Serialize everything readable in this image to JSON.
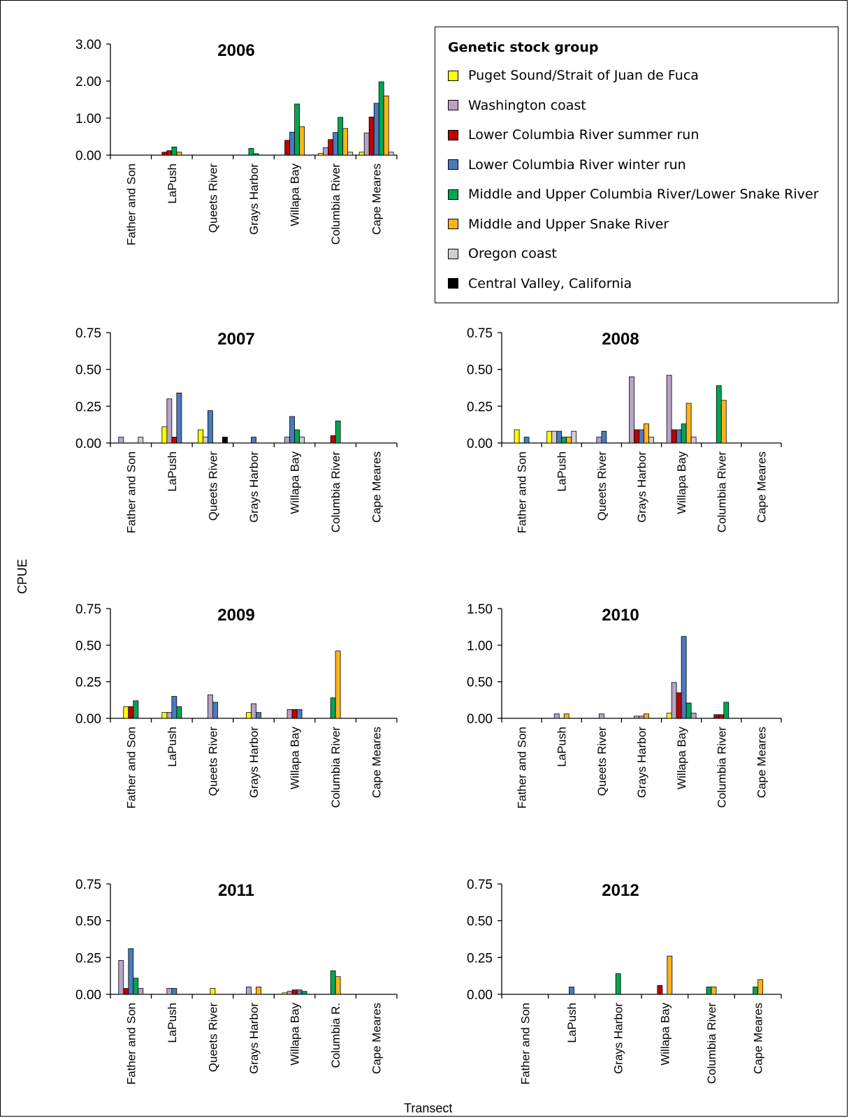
{
  "colors": {
    "puget": "#ffff00",
    "washington": "#b7a3c6",
    "lcr_summer": "#c00000",
    "lcr_winter": "#4a7bbd",
    "mucr": "#00a651",
    "snake": "#ffb31a",
    "oregon": "#cfcfcf",
    "central_valley": "#000000"
  },
  "legend": {
    "title": "Genetic stock group",
    "items": [
      {
        "label": "Puget Sound/Strait of Juan de Fuca",
        "color": "#ffff00"
      },
      {
        "label": "Washington coast",
        "color": "#b7a3c6"
      },
      {
        "label": "Lower Columbia River summer run",
        "color": "#c00000"
      },
      {
        "label": "Lower Columbia River winter run",
        "color": "#4a7bbd"
      },
      {
        "label": "Middle and Upper Columbia River/Lower Snake River",
        "color": "#00a651"
      },
      {
        "label": "Middle and Upper Snake River",
        "color": "#ffb31a"
      },
      {
        "label": "Oregon coast",
        "color": "#cfcfcf"
      },
      {
        "label": "Central Valley, California",
        "color": "#000000"
      }
    ]
  },
  "axes": {
    "ylabel": "CPUE",
    "xlabel": "Transect"
  },
  "chart_data": [
    {
      "type": "bar",
      "title": "2006",
      "categories": [
        "Father and Son",
        "LaPush",
        "Queets River",
        "Grays Harbor",
        "Willapa Bay",
        "Columbia River",
        "Cape Meares"
      ],
      "ylim": [
        0,
        3
      ],
      "yticks": [
        "0.00",
        "1.00",
        "2.00",
        "3.00"
      ],
      "groups": [
        [],
        [
          [
            "lcr_summer",
            0.08
          ],
          [
            "lcr_summer",
            0.12
          ],
          [
            "mucr",
            0.22
          ],
          [
            "snake",
            0.08
          ]
        ],
        [],
        [
          [
            "mucr",
            0.18
          ],
          [
            "mucr",
            0.04
          ]
        ],
        [
          [
            "lcr_summer",
            0.4
          ],
          [
            "lcr_winter",
            0.62
          ],
          [
            "mucr",
            1.38
          ],
          [
            "snake",
            0.77
          ]
        ],
        [
          [
            "puget",
            0.05
          ],
          [
            "washington",
            0.2
          ],
          [
            "lcr_summer",
            0.42
          ],
          [
            "lcr_winter",
            0.61
          ],
          [
            "mucr",
            1.02
          ],
          [
            "snake",
            0.72
          ],
          [
            "oregon",
            0.08
          ]
        ],
        [
          [
            "puget",
            0.08
          ],
          [
            "washington",
            0.6
          ],
          [
            "lcr_summer",
            1.03
          ],
          [
            "lcr_winter",
            1.4
          ],
          [
            "mucr",
            1.98
          ],
          [
            "snake",
            1.6
          ],
          [
            "oregon",
            0.08
          ]
        ]
      ]
    },
    {
      "type": "bar",
      "title": "2007",
      "categories": [
        "Father and Son",
        "LaPush",
        "Queets River",
        "Grays Harbor",
        "Willapa Bay",
        "Columbia River",
        "Cape Meares"
      ],
      "ylim": [
        0,
        0.75
      ],
      "yticks": [
        "0.00",
        "0.25",
        "0.50",
        "0.75"
      ],
      "groups": [
        [
          [
            "washington",
            0.04
          ],
          [
            null,
            0
          ],
          [
            null,
            0
          ],
          [
            null,
            0
          ],
          [
            "oregon",
            0.04
          ]
        ],
        [
          [
            "puget",
            0.11
          ],
          [
            "washington",
            0.3
          ],
          [
            "lcr_summer",
            0.04
          ],
          [
            "lcr_winter",
            0.34
          ]
        ],
        [
          [
            "puget",
            0.09
          ],
          [
            "oregon",
            0.04
          ],
          [
            "lcr_winter",
            0.22
          ],
          [
            null,
            0
          ],
          [
            null,
            0
          ],
          [
            "central_valley",
            0.04
          ]
        ],
        [
          [
            "lcr_winter",
            0.04
          ]
        ],
        [
          [
            "washington",
            0.04
          ],
          [
            "lcr_winter",
            0.18
          ],
          [
            "mucr",
            0.09
          ],
          [
            "oregon",
            0.04
          ]
        ],
        [
          [
            "lcr_summer",
            0.05
          ],
          [
            "mucr",
            0.15
          ]
        ],
        []
      ]
    },
    {
      "type": "bar",
      "title": "2008",
      "categories": [
        "Father and Son",
        "LaPush",
        "Queets River",
        "Grays Harbor",
        "Willapa Bay",
        "Columbia River",
        "Cape Meares"
      ],
      "ylim": [
        0,
        0.75
      ],
      "yticks": [
        "0.00",
        "0.25",
        "0.50",
        "0.75"
      ],
      "groups": [
        [
          [
            "puget",
            0.09
          ],
          [
            null,
            0
          ],
          [
            "lcr_winter",
            0.04
          ]
        ],
        [
          [
            "puget",
            0.08
          ],
          [
            "oregon",
            0.08
          ],
          [
            "lcr_winter",
            0.08
          ],
          [
            "mucr",
            0.04
          ],
          [
            "snake",
            0.04
          ],
          [
            "oregon",
            0.08
          ]
        ],
        [
          [
            "washington",
            0.04
          ],
          [
            "lcr_winter",
            0.08
          ]
        ],
        [
          [
            "washington",
            0.45
          ],
          [
            "lcr_summer",
            0.09
          ],
          [
            "lcr_winter",
            0.09
          ],
          [
            "snake",
            0.13
          ],
          [
            "oregon",
            0.04
          ]
        ],
        [
          [
            "washington",
            0.46
          ],
          [
            "lcr_summer",
            0.09
          ],
          [
            "lcr_winter",
            0.09
          ],
          [
            "mucr",
            0.13
          ],
          [
            "snake",
            0.27
          ],
          [
            "oregon",
            0.04
          ]
        ],
        [
          [
            "mucr",
            0.39
          ],
          [
            "snake",
            0.29
          ]
        ],
        []
      ]
    },
    {
      "type": "bar",
      "title": "2009",
      "categories": [
        "Father and Son",
        "LaPush",
        "Queets River",
        "Grays Harbor",
        "Willapa Bay",
        "Columbia River",
        "Cape Meares"
      ],
      "ylim": [
        0,
        0.75
      ],
      "yticks": [
        "0.00",
        "0.25",
        "0.50",
        "0.75"
      ],
      "groups": [
        [
          [
            "puget",
            0.08
          ],
          [
            "lcr_summer",
            0.08
          ],
          [
            "mucr",
            0.12
          ]
        ],
        [
          [
            "puget",
            0.04
          ],
          [
            "washington",
            0.04
          ],
          [
            "lcr_winter",
            0.15
          ],
          [
            "mucr",
            0.08
          ]
        ],
        [
          [
            "washington",
            0.16
          ],
          [
            "lcr_winter",
            0.11
          ]
        ],
        [
          [
            "puget",
            0.04
          ],
          [
            "washington",
            0.1
          ],
          [
            "lcr_winter",
            0.04
          ]
        ],
        [
          [
            "washington",
            0.06
          ],
          [
            "lcr_summer",
            0.06
          ],
          [
            "lcr_winter",
            0.06
          ]
        ],
        [
          [
            "mucr",
            0.14
          ],
          [
            "snake",
            0.46
          ]
        ],
        []
      ]
    },
    {
      "type": "bar",
      "title": "2010",
      "categories": [
        "Father and Son",
        "LaPush",
        "Queets River",
        "Grays Harbor",
        "Willapa Bay",
        "Columbia River",
        "Cape Meares"
      ],
      "ylim": [
        0,
        1.5
      ],
      "yticks": [
        "0.00",
        "0.50",
        "1.00",
        "1.50"
      ],
      "groups": [
        [],
        [
          [
            "washington",
            0.06
          ],
          [
            null,
            0
          ],
          [
            "snake",
            0.06
          ]
        ],
        [
          [
            "washington",
            0.06
          ]
        ],
        [
          [
            "washington",
            0.03
          ],
          [
            "washington",
            0.03
          ],
          [
            "snake",
            0.06
          ]
        ],
        [
          [
            "puget",
            0.07
          ],
          [
            "washington",
            0.49
          ],
          [
            "lcr_summer",
            0.35
          ],
          [
            "lcr_winter",
            1.12
          ],
          [
            "mucr",
            0.21
          ],
          [
            "washington",
            0.07
          ]
        ],
        [
          [
            "lcr_summer",
            0.05
          ],
          [
            "lcr_summer",
            0.05
          ],
          [
            "mucr",
            0.22
          ]
        ],
        []
      ]
    },
    {
      "type": "bar",
      "title": "2011",
      "categories": [
        "Father and Son",
        "LaPush",
        "Queets River",
        "Grays Harbor",
        "Willapa Bay",
        "Columbia R.",
        "Cape Meares"
      ],
      "ylim": [
        0,
        0.75
      ],
      "yticks": [
        "0.00",
        "0.25",
        "0.50",
        "0.75"
      ],
      "groups": [
        [
          [
            "washington",
            0.23
          ],
          [
            "lcr_summer",
            0.04
          ],
          [
            "lcr_winter",
            0.31
          ],
          [
            "mucr",
            0.11
          ],
          [
            "washington",
            0.04
          ]
        ],
        [
          [
            "washington",
            0.04
          ],
          [
            "lcr_winter",
            0.04
          ]
        ],
        [
          [
            "puget",
            0.04
          ]
        ],
        [
          [
            "washington",
            0.05
          ],
          [
            null,
            0
          ],
          [
            "snake",
            0.05
          ]
        ],
        [
          [
            "puget",
            0.01
          ],
          [
            "washington",
            0.02
          ],
          [
            "lcr_summer",
            0.03
          ],
          [
            "lcr_winter",
            0.03
          ],
          [
            "mucr",
            0.02
          ]
        ],
        [
          [
            "mucr",
            0.16
          ],
          [
            "snake",
            0.12
          ]
        ],
        []
      ]
    },
    {
      "type": "bar",
      "title": "2012",
      "categories": [
        "Father and Son",
        "LaPush",
        "Grays Harbor",
        "Willapa Bay",
        "Columbia River",
        "Cape Meares"
      ],
      "ylim": [
        0,
        0.75
      ],
      "yticks": [
        "0.00",
        "0.25",
        "0.50",
        "0.75"
      ],
      "groups": [
        [],
        [
          [
            "lcr_winter",
            0.05
          ]
        ],
        [
          [
            "mucr",
            0.14
          ]
        ],
        [
          [
            "lcr_summer",
            0.06
          ],
          [
            null,
            0
          ],
          [
            "snake",
            0.26
          ]
        ],
        [
          [
            "mucr",
            0.05
          ],
          [
            "snake",
            0.05
          ]
        ],
        [
          [
            "mucr",
            0.05
          ],
          [
            "snake",
            0.1
          ]
        ]
      ]
    }
  ]
}
